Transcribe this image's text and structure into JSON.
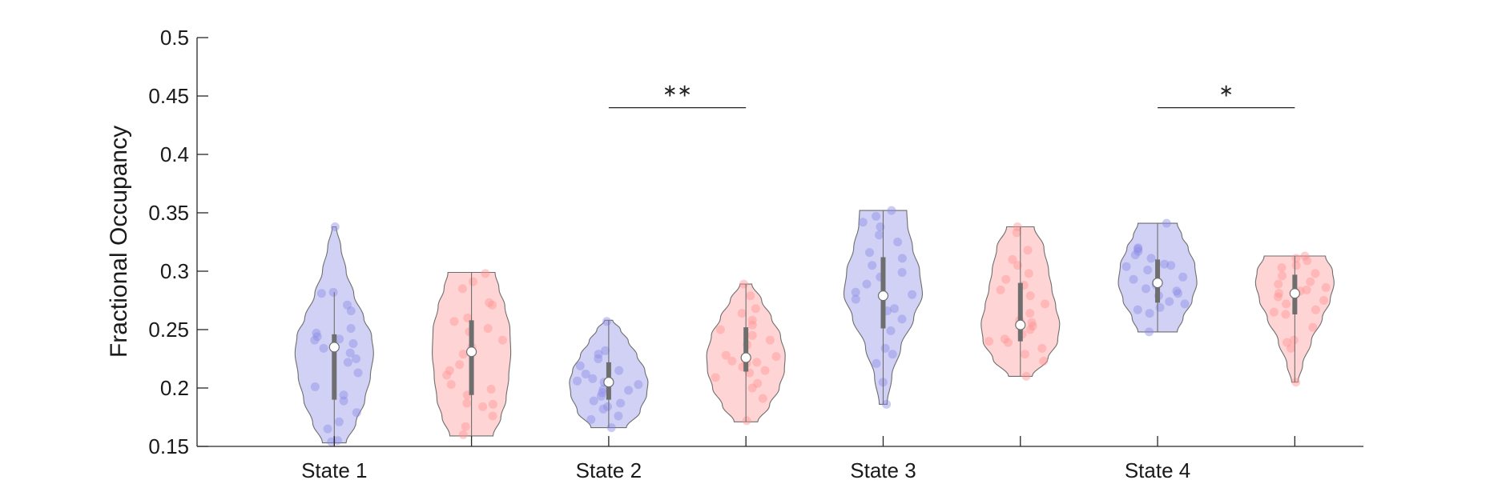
{
  "chart_data": {
    "type": "violin",
    "ylabel": "Fractional Occupancy",
    "xlabel": "",
    "ylim": [
      0.15,
      0.5
    ],
    "yticks": [
      0.15,
      0.2,
      0.25,
      0.3,
      0.35,
      0.4,
      0.45,
      0.5
    ],
    "ytick_labels": [
      "0.15",
      "0.2",
      "0.25",
      "0.3",
      "0.35",
      "0.4",
      "0.45",
      "0.5"
    ],
    "categories": [
      "State 1",
      "State 2",
      "State 3",
      "State 4"
    ],
    "group_colors": [
      "#8c8ce6",
      "#ff9494"
    ],
    "violins": [
      {
        "category": "State 1",
        "group": 0,
        "color": "#8c8ce6",
        "min": 0.153,
        "max": 0.338,
        "median": 0.235,
        "q1": 0.19,
        "q3": 0.246,
        "whisker_low": 0.153,
        "whisker_high": 0.282,
        "profile": [
          [
            0.153,
            0.3
          ],
          [
            0.17,
            0.55
          ],
          [
            0.19,
            0.78
          ],
          [
            0.21,
            0.92
          ],
          [
            0.23,
            1.0
          ],
          [
            0.245,
            0.95
          ],
          [
            0.26,
            0.75
          ],
          [
            0.28,
            0.5
          ],
          [
            0.3,
            0.3
          ],
          [
            0.32,
            0.17
          ],
          [
            0.338,
            0.05
          ]
        ],
        "points": [
          0.155,
          0.165,
          0.171,
          0.179,
          0.189,
          0.194,
          0.201,
          0.213,
          0.222,
          0.225,
          0.23,
          0.234,
          0.238,
          0.241,
          0.242,
          0.244,
          0.247,
          0.251,
          0.266,
          0.271,
          0.281,
          0.282,
          0.338,
          0.154
        ]
      },
      {
        "category": "State 1",
        "group": 1,
        "color": "#ff9494",
        "min": 0.159,
        "max": 0.299,
        "median": 0.231,
        "q1": 0.194,
        "q3": 0.258,
        "whisker_low": 0.159,
        "whisker_high": 0.299,
        "profile": [
          [
            0.159,
            0.55
          ],
          [
            0.175,
            0.75
          ],
          [
            0.19,
            0.88
          ],
          [
            0.21,
            0.95
          ],
          [
            0.23,
            1.0
          ],
          [
            0.25,
            0.98
          ],
          [
            0.27,
            0.85
          ],
          [
            0.285,
            0.7
          ],
          [
            0.299,
            0.6
          ]
        ],
        "points": [
          0.16,
          0.167,
          0.176,
          0.186,
          0.187,
          0.194,
          0.199,
          0.203,
          0.215,
          0.22,
          0.229,
          0.235,
          0.241,
          0.248,
          0.251,
          0.257,
          0.26,
          0.271,
          0.273,
          0.285,
          0.291,
          0.298,
          0.184,
          0.211
        ]
      },
      {
        "category": "State 2",
        "group": 0,
        "color": "#8c8ce6",
        "min": 0.166,
        "max": 0.258,
        "median": 0.205,
        "q1": 0.19,
        "q3": 0.222,
        "whisker_low": 0.166,
        "whisker_high": 0.258,
        "profile": [
          [
            0.166,
            0.45
          ],
          [
            0.18,
            0.8
          ],
          [
            0.195,
            0.97
          ],
          [
            0.205,
            1.0
          ],
          [
            0.215,
            0.92
          ],
          [
            0.228,
            0.72
          ],
          [
            0.24,
            0.5
          ],
          [
            0.25,
            0.3
          ],
          [
            0.258,
            0.1
          ]
        ],
        "points": [
          0.166,
          0.173,
          0.176,
          0.182,
          0.187,
          0.189,
          0.193,
          0.196,
          0.199,
          0.203,
          0.205,
          0.206,
          0.208,
          0.212,
          0.215,
          0.219,
          0.225,
          0.229,
          0.232,
          0.257,
          0.198,
          0.184
        ]
      },
      {
        "category": "State 2",
        "group": 1,
        "color": "#ff9494",
        "min": 0.171,
        "max": 0.289,
        "median": 0.226,
        "q1": 0.214,
        "q3": 0.252,
        "whisker_low": 0.171,
        "whisker_high": 0.289,
        "profile": [
          [
            0.171,
            0.3
          ],
          [
            0.185,
            0.6
          ],
          [
            0.2,
            0.85
          ],
          [
            0.215,
            0.98
          ],
          [
            0.228,
            1.0
          ],
          [
            0.245,
            0.88
          ],
          [
            0.26,
            0.65
          ],
          [
            0.275,
            0.4
          ],
          [
            0.289,
            0.15
          ]
        ],
        "points": [
          0.172,
          0.191,
          0.2,
          0.204,
          0.209,
          0.213,
          0.218,
          0.221,
          0.222,
          0.223,
          0.225,
          0.227,
          0.228,
          0.237,
          0.241,
          0.245,
          0.25,
          0.254,
          0.258,
          0.264,
          0.268,
          0.279,
          0.289,
          0.215
        ]
      },
      {
        "category": "State 3",
        "group": 0,
        "color": "#8c8ce6",
        "min": 0.186,
        "max": 0.352,
        "median": 0.279,
        "q1": 0.251,
        "q3": 0.312,
        "whisker_low": 0.186,
        "whisker_high": 0.352,
        "profile": [
          [
            0.186,
            0.1
          ],
          [
            0.21,
            0.22
          ],
          [
            0.235,
            0.45
          ],
          [
            0.26,
            0.78
          ],
          [
            0.28,
            1.0
          ],
          [
            0.3,
            0.93
          ],
          [
            0.32,
            0.75
          ],
          [
            0.34,
            0.62
          ],
          [
            0.352,
            0.6
          ]
        ],
        "points": [
          0.186,
          0.205,
          0.221,
          0.234,
          0.249,
          0.259,
          0.266,
          0.268,
          0.276,
          0.28,
          0.282,
          0.289,
          0.295,
          0.299,
          0.305,
          0.311,
          0.316,
          0.325,
          0.331,
          0.338,
          0.342,
          0.347,
          0.352,
          0.229
        ]
      },
      {
        "category": "State 3",
        "group": 1,
        "color": "#ff9494",
        "min": 0.21,
        "max": 0.338,
        "median": 0.254,
        "q1": 0.24,
        "q3": 0.29,
        "whisker_low": 0.21,
        "whisker_high": 0.338,
        "profile": [
          [
            0.21,
            0.3
          ],
          [
            0.225,
            0.7
          ],
          [
            0.24,
            0.95
          ],
          [
            0.255,
            1.0
          ],
          [
            0.27,
            0.9
          ],
          [
            0.285,
            0.8
          ],
          [
            0.3,
            0.72
          ],
          [
            0.32,
            0.6
          ],
          [
            0.338,
            0.35
          ]
        ],
        "points": [
          0.21,
          0.223,
          0.229,
          0.234,
          0.239,
          0.24,
          0.242,
          0.246,
          0.25,
          0.253,
          0.256,
          0.258,
          0.264,
          0.272,
          0.279,
          0.284,
          0.288,
          0.293,
          0.298,
          0.305,
          0.31,
          0.318,
          0.333,
          0.338
        ]
      },
      {
        "category": "State 4",
        "group": 0,
        "color": "#8c8ce6",
        "min": 0.248,
        "max": 0.341,
        "median": 0.29,
        "q1": 0.273,
        "q3": 0.31,
        "whisker_low": 0.248,
        "whisker_high": 0.341,
        "profile": [
          [
            0.248,
            0.5
          ],
          [
            0.26,
            0.65
          ],
          [
            0.275,
            0.88
          ],
          [
            0.29,
            1.0
          ],
          [
            0.305,
            0.95
          ],
          [
            0.32,
            0.78
          ],
          [
            0.33,
            0.62
          ],
          [
            0.341,
            0.5
          ]
        ],
        "points": [
          0.248,
          0.264,
          0.267,
          0.269,
          0.272,
          0.274,
          0.279,
          0.281,
          0.283,
          0.285,
          0.288,
          0.29,
          0.293,
          0.295,
          0.301,
          0.304,
          0.306,
          0.311,
          0.314,
          0.317,
          0.319,
          0.32,
          0.341,
          0.305
        ]
      },
      {
        "category": "State 4",
        "group": 1,
        "color": "#ff9494",
        "min": 0.205,
        "max": 0.313,
        "median": 0.281,
        "q1": 0.263,
        "q3": 0.297,
        "whisker_low": 0.205,
        "whisker_high": 0.313,
        "profile": [
          [
            0.205,
            0.08
          ],
          [
            0.22,
            0.2
          ],
          [
            0.24,
            0.42
          ],
          [
            0.26,
            0.7
          ],
          [
            0.275,
            0.9
          ],
          [
            0.29,
            1.0
          ],
          [
            0.3,
            0.96
          ],
          [
            0.313,
            0.78
          ]
        ],
        "points": [
          0.205,
          0.234,
          0.239,
          0.241,
          0.252,
          0.263,
          0.265,
          0.267,
          0.272,
          0.275,
          0.278,
          0.281,
          0.283,
          0.286,
          0.289,
          0.291,
          0.296,
          0.298,
          0.303,
          0.305,
          0.309,
          0.311,
          0.313,
          0.284
        ]
      }
    ],
    "significance": [
      {
        "between": [
          "State 2",
          "State 2"
        ],
        "groups": [
          0,
          1
        ],
        "y": 0.44,
        "label": "∗∗"
      },
      {
        "between": [
          "State 4",
          "State 4"
        ],
        "groups": [
          0,
          1
        ],
        "y": 0.44,
        "label": "∗"
      }
    ]
  }
}
